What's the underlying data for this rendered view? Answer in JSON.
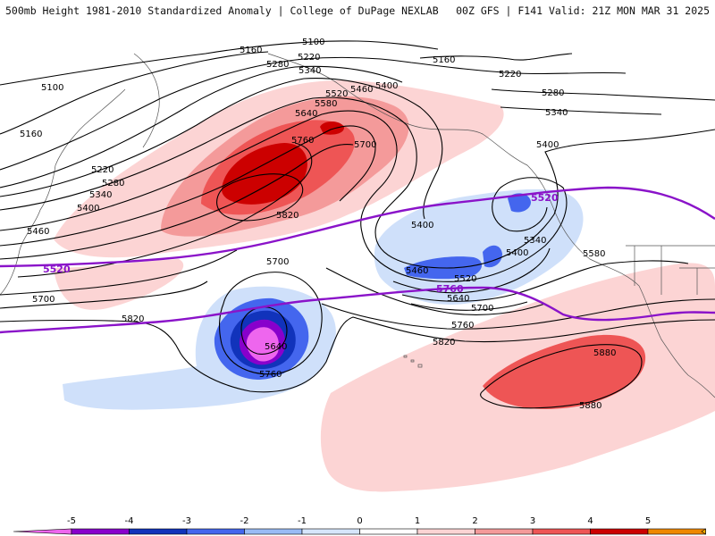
{
  "header": {
    "left_title": "500mb Height 1981-2010 Standardized Anomaly | College of DuPage NEXLAB",
    "right_title": "00Z GFS | F141 Valid: 21Z MON MAR 31 2025"
  },
  "contours": {
    "c5100a": "5100",
    "c5100b": "5100",
    "c5160a": "5160",
    "c5160b": "5160",
    "c5160c": "5160",
    "c5220a": "5220",
    "c5220b": "5220",
    "c5220c": "5220",
    "c5280a": "5280",
    "c5280b": "5280",
    "c5280c": "5280",
    "c5340a": "5340",
    "c5340b": "5340",
    "c5340c": "5340",
    "c5340d": "5340",
    "c5400a": "5400",
    "c5400b": "5400",
    "c5400c": "5400",
    "c5400d": "5400",
    "c5400e": "5400",
    "c5460a": "5460",
    "c5460b": "5460",
    "c5460c": "5460",
    "c5520a": "5520",
    "c5520b": "5520",
    "c5580a": "5580",
    "c5580b": "5580",
    "c5640a": "5640",
    "c5640b": "5640",
    "c5640c": "5640",
    "c5700a": "5700",
    "c5700b": "5700",
    "c5700c": "5700",
    "c5700d": "5700",
    "c5760a": "5760",
    "c5760b": "5760",
    "c5760c": "5760",
    "c5820a": "5820",
    "c5820b": "5820",
    "c5820c": "5820",
    "c5880a": "5880",
    "c5880b": "5880",
    "p5520a": "5520",
    "p5520b": "5520",
    "p5760": "5760"
  },
  "colorbar": {
    "ticks": [
      "-5",
      "-4",
      "-3",
      "-2",
      "-1",
      "0",
      "1",
      "2",
      "3",
      "4",
      "5"
    ],
    "colors": [
      "#ee66ee",
      "#8800cc",
      "#1133bb",
      "#4466ee",
      "#99bbf5",
      "#d6e6fb",
      "#ffffff",
      "#fcd4d4",
      "#f49a9a",
      "#ee5555",
      "#cc0000",
      "#ee8800",
      "#ffb000"
    ]
  }
}
